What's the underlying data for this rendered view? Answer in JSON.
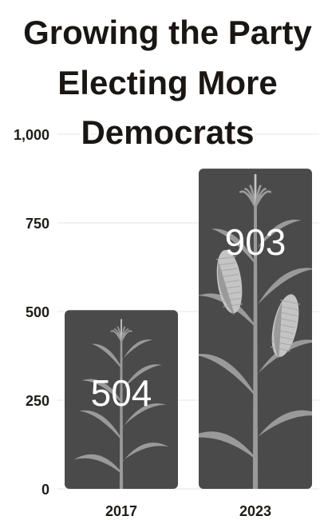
{
  "chart_data": {
    "type": "bar",
    "title_lines": [
      "Growing the Party",
      "Electing More",
      "Democrats"
    ],
    "categories": [
      "2017",
      "2023"
    ],
    "values": [
      504,
      903
    ],
    "data_labels": [
      "504",
      "903"
    ],
    "ylim": [
      0,
      1000
    ],
    "yticks": [
      0,
      250,
      500,
      750,
      1000
    ],
    "ytick_labels": [
      "0",
      "250",
      "500",
      "750",
      "1,000"
    ],
    "grid": true,
    "legend": "none",
    "colors": {
      "bar": "#4a4a4a",
      "plant": "#9a9a9a",
      "plant_light": "#c4c4c4",
      "grid": "#e6e6e6",
      "text": "#1f1c19",
      "label": "#ffffff"
    },
    "bar_decoration": [
      "corn-plant-icon",
      "corn-plant-icon"
    ]
  }
}
